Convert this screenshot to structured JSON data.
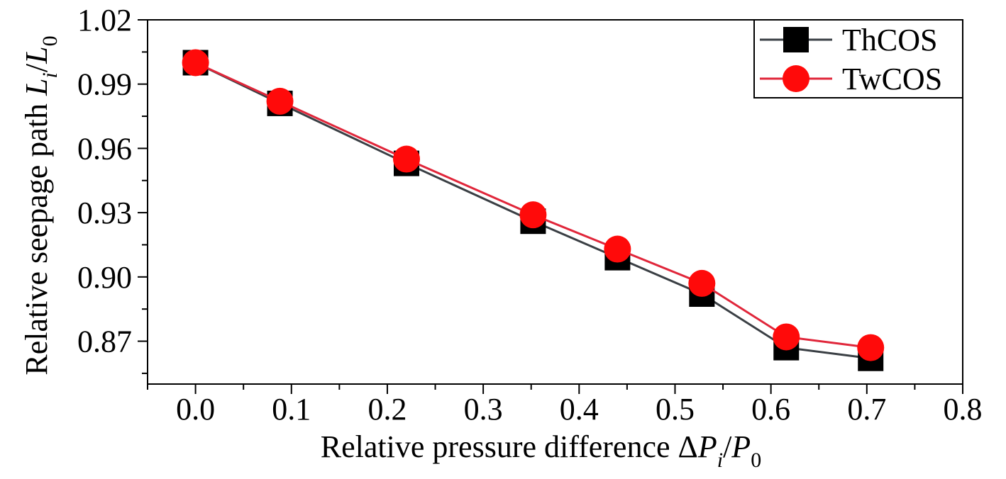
{
  "chart_data": {
    "type": "line",
    "x": [
      0.0,
      0.088,
      0.22,
      0.352,
      0.44,
      0.528,
      0.616,
      0.704
    ],
    "series": [
      {
        "name": "ThCOS",
        "values": [
          1.0,
          0.981,
          0.953,
          0.926,
          0.909,
          0.892,
          0.867,
          0.862
        ],
        "color": "#3a3f44",
        "marker": "square"
      },
      {
        "name": "TwCOS",
        "values": [
          1.0,
          0.982,
          0.955,
          0.929,
          0.913,
          0.897,
          0.872,
          0.867
        ],
        "color": "#e0263a",
        "marker": "circle"
      }
    ],
    "xlim": [
      -0.05,
      0.8
    ],
    "ylim": [
      0.85,
      1.02
    ],
    "xticks": [
      0.0,
      0.1,
      0.2,
      0.3,
      0.4,
      0.5,
      0.6,
      0.7,
      0.8
    ],
    "xtick_labels": [
      "0.0",
      "0.1",
      "0.2",
      "0.3",
      "0.4",
      "0.5",
      "0.6",
      "0.7",
      "0.8"
    ],
    "yticks": [
      0.87,
      0.9,
      0.93,
      0.96,
      0.99,
      1.02
    ],
    "ytick_labels": [
      "0.87",
      "0.90",
      "0.93",
      "0.96",
      "0.99",
      "1.02"
    ],
    "xlabel": {
      "main": "Relative pressure difference Δ",
      "var1": "P",
      "sub1": "i",
      "slash": "/",
      "var2": "P",
      "sub2": "0"
    },
    "ylabel": {
      "main": "Relative seepage path ",
      "var1": "L",
      "sub1": "i",
      "slash": "/",
      "var2": "L",
      "sub2": "0"
    },
    "legend_position": "top-right",
    "grid": false
  }
}
